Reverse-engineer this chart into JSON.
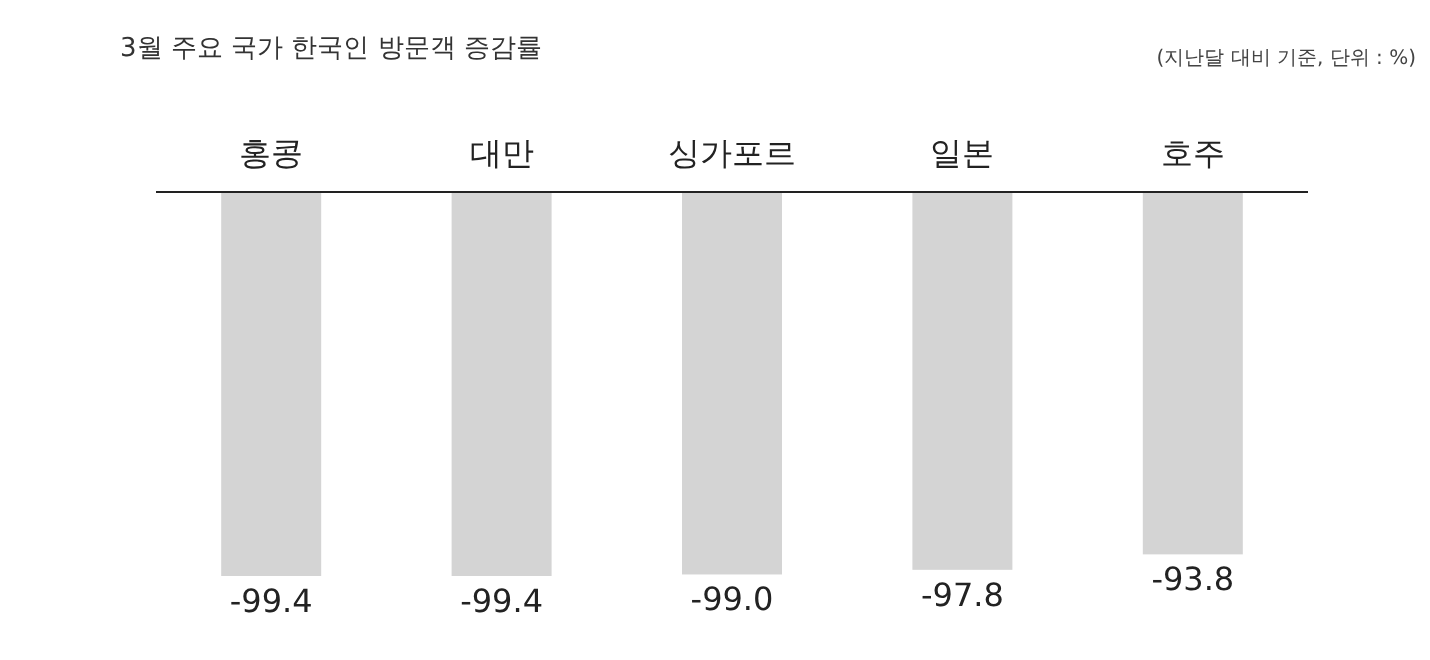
{
  "chart_data": {
    "type": "bar",
    "title": "3월 주요 국가 한국인 방문객 증감률",
    "annotations": [
      "(지난달 대비 기준, 단위 : %)"
    ],
    "categories": [
      "홍콩",
      "대만",
      "싱가포르",
      "일본",
      "호주"
    ],
    "values": [
      -99.4,
      -99.4,
      -99.0,
      -97.8,
      -93.8
    ],
    "value_labels": [
      "-99.4",
      "-99.4",
      "-99.0",
      "-97.8",
      "-93.8"
    ],
    "color": "#d4d4d4"
  }
}
